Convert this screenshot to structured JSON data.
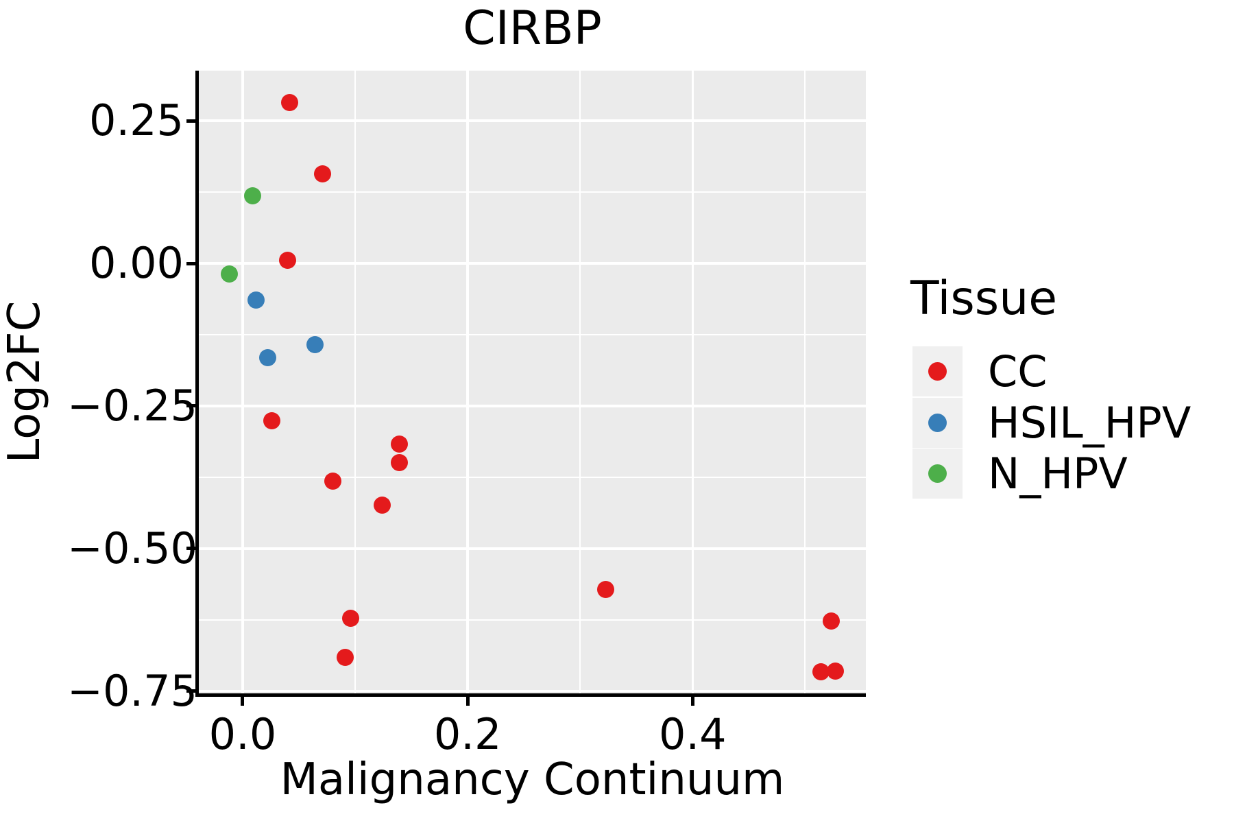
{
  "figure": {
    "title": "CIRBP",
    "xlabel": "Malignancy Continuum",
    "ylabel": "Log2FC"
  },
  "legend": {
    "title": "Tissue",
    "items": [
      {
        "label": "CC",
        "color": "#E41A1C"
      },
      {
        "label": "HSIL_HPV",
        "color": "#377EB8"
      },
      {
        "label": "N_HPV",
        "color": "#4DAF4A"
      }
    ]
  },
  "chart_data": {
    "type": "scatter",
    "title": "CIRBP",
    "xlabel": "Malignancy Continuum",
    "ylabel": "Log2FC",
    "xlim": [
      -0.039,
      0.554
    ],
    "ylim": [
      -0.754,
      0.338
    ],
    "grid": true,
    "legend_position": "right",
    "panel_background": "#EBEBEB",
    "gridline_color": "#FFFFFF",
    "x_ticks": {
      "values": [
        0.0,
        0.2,
        0.4
      ],
      "labels": [
        "0.0",
        "0.2",
        "0.4"
      ]
    },
    "y_ticks": {
      "values": [
        0.25,
        0.0,
        -0.25,
        -0.5,
        -0.75
      ],
      "labels": [
        "0.25",
        "0.00",
        "−0.25",
        "−0.50",
        "−0.75"
      ]
    },
    "x_minor_gridlines": [
      0.1,
      0.3,
      0.5
    ],
    "y_minor_gridlines": [
      0.125,
      -0.125,
      -0.375,
      -0.625
    ],
    "series": [
      {
        "name": "CC",
        "color": "#E41A1C",
        "points": [
          [
            0.042,
            0.282
          ],
          [
            0.071,
            0.157
          ],
          [
            0.04,
            0.005
          ],
          [
            0.026,
            -0.276
          ],
          [
            0.139,
            -0.317
          ],
          [
            0.139,
            -0.349
          ],
          [
            0.08,
            -0.382
          ],
          [
            0.124,
            -0.424
          ],
          [
            0.323,
            -0.572
          ],
          [
            0.096,
            -0.622
          ],
          [
            0.091,
            -0.691
          ],
          [
            0.523,
            -0.627
          ],
          [
            0.514,
            -0.716
          ],
          [
            0.527,
            -0.715
          ]
        ]
      },
      {
        "name": "HSIL_HPV",
        "color": "#377EB8",
        "points": [
          [
            0.012,
            -0.064
          ],
          [
            0.064,
            -0.142
          ],
          [
            0.022,
            -0.165
          ]
        ]
      },
      {
        "name": "N_HPV",
        "color": "#4DAF4A",
        "points": [
          [
            0.009,
            0.118
          ],
          [
            -0.012,
            -0.018
          ]
        ]
      }
    ]
  }
}
